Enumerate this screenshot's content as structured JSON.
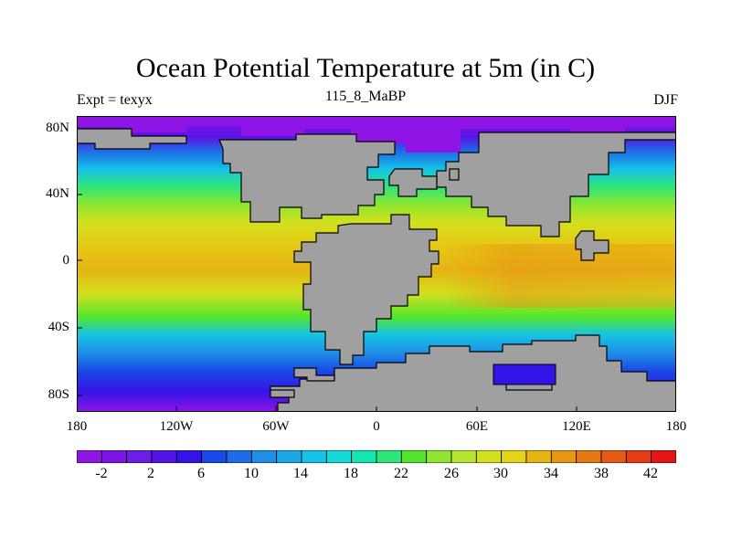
{
  "title": "Ocean Potential Temperature at 5m (in C)",
  "left_string": "Expt = texyx",
  "center_string": "115_8_MaBP",
  "right_string": "DJF",
  "lat_ticks": [
    "80N",
    "40N",
    "0",
    "40S",
    "80S"
  ],
  "lon_ticks": [
    "180",
    "120W",
    "60W",
    "0",
    "60E",
    "120E",
    "180"
  ],
  "colorbar": {
    "labels": [
      "-2",
      "2",
      "6",
      "10",
      "14",
      "18",
      "22",
      "26",
      "30",
      "34",
      "38",
      "42"
    ],
    "colors": [
      "#8f14e6",
      "#7d14e6",
      "#6a1ee6",
      "#5214e6",
      "#3314e6",
      "#1a4be6",
      "#1f6de6",
      "#1f8ee6",
      "#1aa9e6",
      "#14c3e6",
      "#14d9d9",
      "#14e6b0",
      "#2ee678",
      "#52e62e",
      "#8ee62e",
      "#b4e62e",
      "#d2e01e",
      "#e6d21a",
      "#e6b414",
      "#e69614",
      "#e67814",
      "#e65a14",
      "#e63c14",
      "#e61414"
    ]
  },
  "colors": {
    "land": "#a0a0a0",
    "coast": "#000000"
  }
}
